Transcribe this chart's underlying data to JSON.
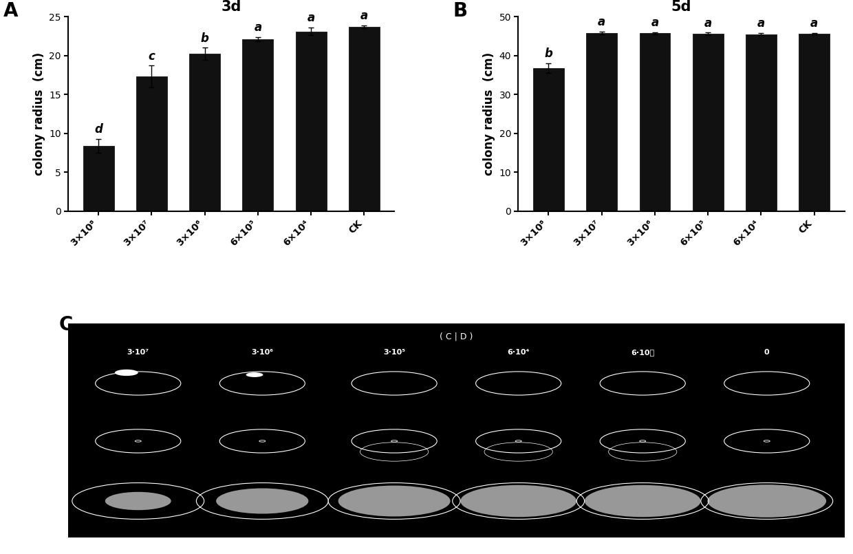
{
  "panel_A": {
    "title": "3d",
    "ylabel": "colony radius  (cm)",
    "ylim": [
      0,
      25
    ],
    "yticks": [
      0,
      5,
      10,
      15,
      20,
      25
    ],
    "values": [
      8.4,
      17.3,
      20.2,
      22.1,
      23.1,
      23.7
    ],
    "errors": [
      0.9,
      1.4,
      0.8,
      0.3,
      0.5,
      0.2
    ],
    "letters": [
      "d",
      "c",
      "b",
      "a",
      "a",
      "a"
    ],
    "bar_color": "#111111"
  },
  "panel_B": {
    "title": "5d",
    "ylabel": "colony radius  (cm)",
    "ylim": [
      0,
      50
    ],
    "yticks": [
      0,
      10,
      20,
      30,
      40,
      50
    ],
    "values": [
      36.8,
      45.8,
      45.7,
      45.6,
      45.5,
      45.6
    ],
    "errors": [
      1.2,
      0.4,
      0.3,
      0.3,
      0.3,
      0.2
    ],
    "letters": [
      "b",
      "a",
      "a",
      "a",
      "a",
      "a"
    ],
    "bar_color": "#111111"
  },
  "xticklabels_A": [
    "3×10⁸",
    "3×10⁷",
    "3×10⁶",
    "6×10⁵",
    "6×10⁴",
    "CK"
  ],
  "xticklabels_B": [
    "3×10⁸",
    "3×10⁷",
    "3×10⁶",
    "6×10⁵",
    "6×10⁴",
    "CK"
  ],
  "panel_C_subtitle": "( C | D )",
  "panel_C_labels": [
    "3·10⁷",
    "3·10⁶",
    "3·10⁵",
    "6·10⁴",
    "6·10⁳",
    "0"
  ],
  "bg_color": "#ffffff",
  "bar_edge_color": "#000000",
  "label_fontsize": 12,
  "title_fontsize": 15,
  "letter_fontsize": 12,
  "tick_fontsize": 10,
  "panel_label_fontsize": 20
}
